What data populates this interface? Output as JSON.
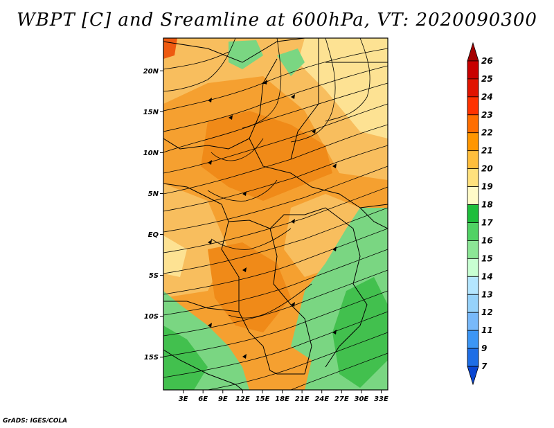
{
  "title": "WBPT [C] and Sreamline at 600hPa, VT: 2020090300",
  "footer": "GrADS: IGES/COLA",
  "map": {
    "lat_labels": [
      "20N",
      "15N",
      "10N",
      "5N",
      "EQ",
      "5S",
      "10S",
      "15S"
    ],
    "lon_labels": [
      "3E",
      "6E",
      "9E",
      "12E",
      "15E",
      "18E",
      "21E",
      "24E",
      "27E",
      "30E",
      "33E"
    ],
    "lat_values": [
      20,
      15,
      10,
      5,
      0,
      -5,
      -10,
      -15
    ],
    "lon_values": [
      3,
      6,
      9,
      12,
      15,
      18,
      21,
      24,
      27,
      30,
      33
    ],
    "lat_range": [
      -19,
      24
    ],
    "lon_range": [
      0,
      34
    ]
  },
  "colorbar": {
    "levels": [
      "26",
      "25",
      "24",
      "23",
      "22",
      "21",
      "20",
      "19",
      "18",
      "17",
      "16",
      "15",
      "14",
      "13",
      "12",
      "11",
      "9",
      "7"
    ],
    "colors": [
      "#a50000",
      "#c80000",
      "#e11400",
      "#ff3200",
      "#ff6e00",
      "#ff9600",
      "#ffbe3c",
      "#ffe17d",
      "#fffac8",
      "#1ebe3c",
      "#50d264",
      "#8ce696",
      "#c8ffd2",
      "#b4e6ff",
      "#96d2fa",
      "#78b9fa",
      "#3c96f5",
      "#1e6ee6",
      "#0a46d2"
    ]
  }
}
